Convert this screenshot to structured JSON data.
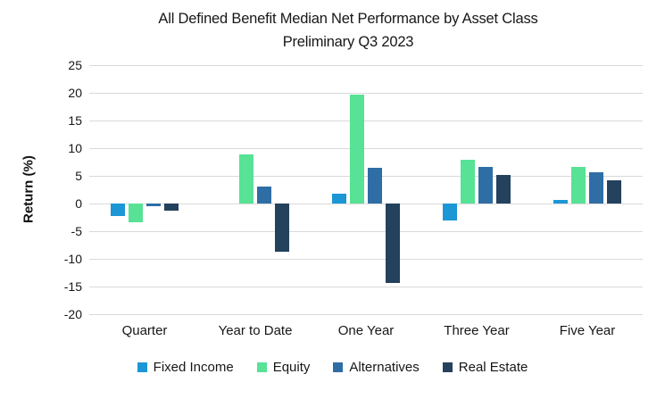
{
  "chart_data": {
    "type": "bar",
    "title": "All Defined Benefit Median Net Performance by Asset Class",
    "subtitle": "Preliminary Q3 2023",
    "ylabel": "Return (%)",
    "ylim": [
      -20,
      25
    ],
    "yticks": [
      25,
      20,
      15,
      10,
      5,
      0,
      -5,
      -10,
      -15,
      -20
    ],
    "grid": true,
    "grid_color": "#d9d9d9",
    "background_color": "#ffffff",
    "legend_position": "bottom",
    "categories": [
      "Quarter",
      "Year to Date",
      "One Year",
      "Three Year",
      "Five Year"
    ],
    "series": [
      {
        "name": "Fixed Income",
        "color": "#1b97d5",
        "values": [
          -2.3,
          0,
          1.8,
          -3.1,
          0.6
        ]
      },
      {
        "name": "Equity",
        "color": "#57e295",
        "values": [
          -3.3,
          8.8,
          19.7,
          7.9,
          6.6
        ]
      },
      {
        "name": "Alternatives",
        "color": "#2f6da5",
        "values": [
          -0.5,
          3.0,
          6.4,
          6.6,
          5.7
        ]
      },
      {
        "name": "Real Estate",
        "color": "#24415e",
        "values": [
          -1.3,
          -8.7,
          -14.3,
          5.1,
          4.2
        ]
      }
    ]
  }
}
